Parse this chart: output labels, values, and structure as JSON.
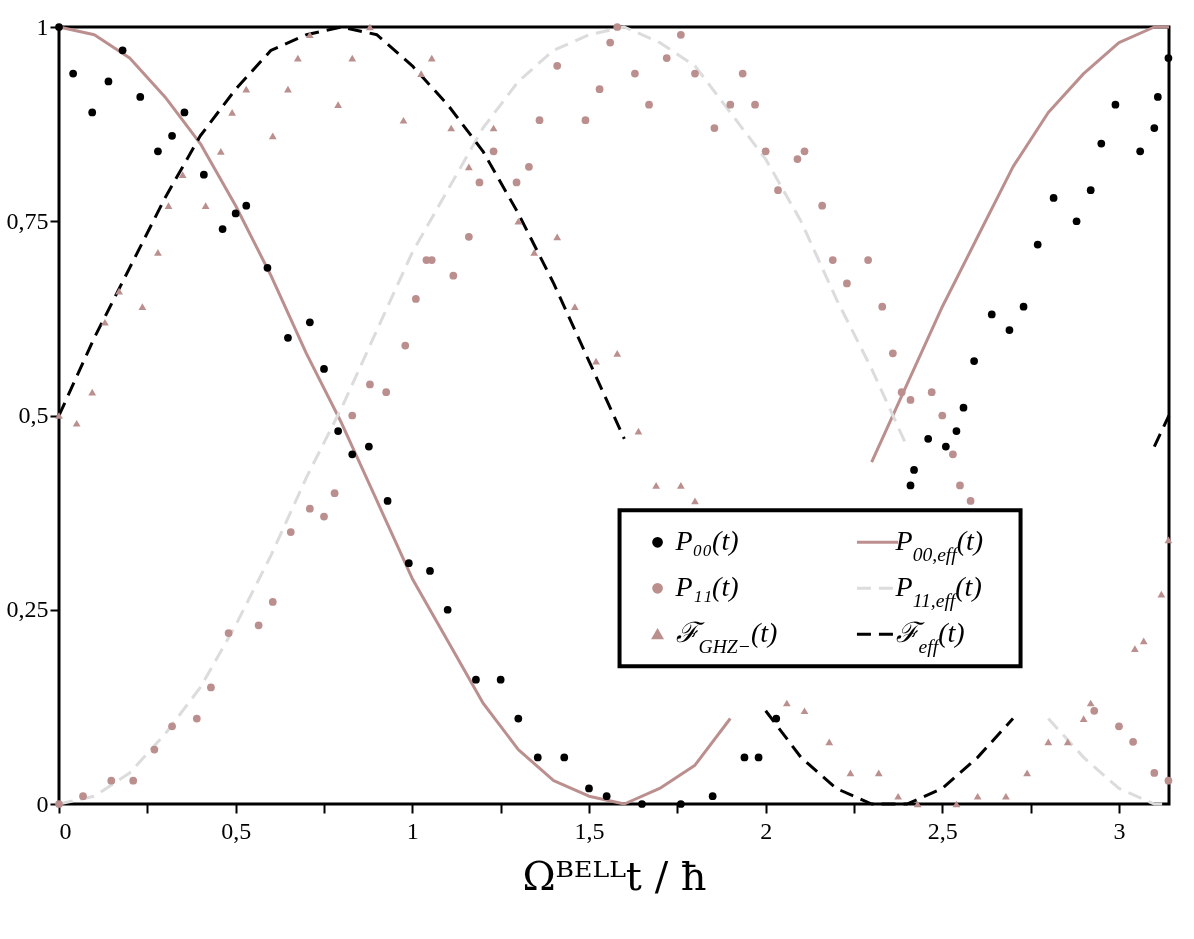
{
  "chart_data": {
    "type": "line",
    "xlabel": "Ωᴮᴱᴸᴸt / ħ",
    "x": [
      0,
      0.1,
      0.2,
      0.3,
      0.4,
      0.5,
      0.6,
      0.7,
      0.8,
      0.9,
      1.0,
      1.1,
      1.2,
      1.3,
      1.4,
      1.5,
      1.6,
      1.7,
      1.8,
      1.9,
      2.0,
      2.1,
      2.2,
      2.3,
      2.4,
      2.5,
      2.6,
      2.7,
      2.8,
      2.9,
      3.0,
      3.1,
      3.1416
    ],
    "xlim": [
      0,
      3.1416
    ],
    "ylim": [
      0,
      1
    ],
    "xticks": [
      0,
      {
        "value": 0.25,
        "label": null
      },
      {
        "value": 0.5,
        "label": "0,5"
      },
      {
        "value": 0.75,
        "label": null
      },
      1,
      {
        "value": 1.25,
        "label": null
      },
      {
        "value": 1.5,
        "label": "1,5"
      },
      {
        "value": 1.75,
        "label": null
      },
      2,
      {
        "value": 2.25,
        "label": null
      },
      {
        "value": 2.5,
        "label": "2,5"
      },
      {
        "value": 2.75,
        "label": null
      },
      3
    ],
    "yticks": [
      0,
      {
        "value": 0.25,
        "label": "0,25"
      },
      {
        "value": 0.5,
        "label": "0,5"
      },
      {
        "value": 0.75,
        "label": "0,75"
      },
      1
    ],
    "legend": "bottom right",
    "line_style": "solid",
    "series": [
      {
        "name": "P₀₀(t)",
        "type": "scatter",
        "color": "#000000",
        "marker": "circle",
        "x": [
          0,
          0.04,
          0.094,
          0.14,
          0.18,
          0.23,
          0.28,
          0.32,
          0.355,
          0.41,
          0.463,
          0.5,
          0.53,
          0.59,
          0.648,
          0.71,
          0.75,
          0.79,
          0.83,
          0.877,
          0.93,
          0.99,
          1.05,
          1.1,
          1.18,
          1.25,
          1.3,
          1.355,
          1.43,
          1.5,
          1.55,
          1.65,
          1.76,
          1.85,
          1.94,
          1.98,
          2.03,
          2.2,
          2.41,
          2.42,
          2.46,
          2.51,
          2.54,
          2.56,
          2.59,
          2.64,
          2.69,
          2.73,
          2.77,
          2.815,
          2.88,
          2.92,
          2.95,
          2.99,
          3.06,
          3.1,
          3.11,
          3.14
        ],
        "values": [
          1,
          0.94,
          0.89,
          0.93,
          0.97,
          0.91,
          0.84,
          0.86,
          0.89,
          0.81,
          0.74,
          0.76,
          0.77,
          0.69,
          0.6,
          0.62,
          0.56,
          0.48,
          0.45,
          0.46,
          0.39,
          0.31,
          0.3,
          0.25,
          0.16,
          0.16,
          0.11,
          0.06,
          0.06,
          0.02,
          0.01,
          0,
          0,
          0.01,
          0.06,
          0.06,
          0.11,
          null,
          0.41,
          0.43,
          0.47,
          0.46,
          0.48,
          0.51,
          0.57,
          0.63,
          0.61,
          0.64,
          0.72,
          0.78,
          0.75,
          0.79,
          0.85,
          0.9,
          0.84,
          0.87,
          0.91,
          0.96
        ]
      },
      {
        "name": "P$_{00,eff}$(t)",
        "color": "#bc8f8f",
        "values": [
          1,
          0.99,
          0.96,
          0.91,
          0.85,
          0.77,
          0.68,
          0.58,
          0.49,
          0.39,
          0.29,
          0.21,
          0.13,
          0.07,
          0.03,
          0.01,
          0,
          0.02,
          0.05,
          0.11,
          null,
          null,
          null,
          0.44,
          0.54,
          0.64,
          0.73,
          0.82,
          0.89,
          0.94,
          0.98,
          1,
          1
        ]
      },
      {
        "name": "P₁₁(t)",
        "type": "scatter",
        "color": "#bc8f8f",
        "marker": "circle",
        "x": [
          0,
          0.068,
          0.148,
          0.21,
          0.27,
          0.32,
          0.39,
          0.43,
          0.48,
          0.565,
          0.605,
          0.656,
          0.71,
          0.75,
          0.78,
          0.83,
          0.88,
          0.926,
          0.98,
          1.01,
          1.04,
          1.055,
          1.116,
          1.16,
          1.19,
          1.23,
          1.295,
          1.33,
          1.36,
          1.41,
          1.49,
          1.53,
          1.56,
          1.58,
          1.63,
          1.67,
          1.72,
          1.76,
          1.8,
          1.855,
          1.9,
          1.935,
          1.97,
          2.0,
          2.035,
          2.09,
          2.11,
          2.16,
          2.19,
          2.23,
          2.29,
          2.33,
          2.36,
          2.385,
          2.41,
          2.47,
          2.5,
          2.53,
          2.55,
          2.58,
          2.75,
          2.93,
          3.0,
          3.04,
          3.1,
          3.14
        ],
        "values": [
          0,
          0.01,
          0.03,
          0.03,
          0.07,
          0.1,
          0.11,
          0.15,
          0.22,
          0.23,
          0.26,
          0.35,
          0.38,
          0.37,
          0.4,
          0.5,
          0.54,
          0.53,
          0.59,
          0.65,
          0.7,
          0.7,
          0.68,
          0.73,
          0.8,
          0.84,
          0.8,
          0.82,
          0.88,
          0.95,
          0.88,
          0.92,
          0.98,
          1.0,
          0.94,
          0.9,
          0.96,
          0.99,
          0.94,
          0.87,
          0.9,
          0.94,
          0.9,
          0.84,
          0.79,
          0.83,
          0.84,
          0.77,
          0.7,
          0.67,
          0.7,
          0.64,
          0.58,
          0.53,
          0.52,
          0.53,
          0.5,
          0.45,
          0.41,
          0.39,
          null,
          0.12,
          0.1,
          0.08,
          0.04,
          0.03
        ]
      },
      {
        "name": "P$_{11,eff}$(t)",
        "color": "#dcdcdc",
        "line_style": "dashed",
        "values": [
          0,
          0.01,
          0.04,
          0.09,
          0.15,
          0.23,
          0.32,
          0.42,
          0.51,
          0.61,
          0.71,
          0.79,
          0.87,
          0.93,
          0.97,
          0.99,
          1,
          0.98,
          0.95,
          0.89,
          0.83,
          0.75,
          0.65,
          0.56,
          0.46,
          null,
          null,
          null,
          0.11,
          0.06,
          0.02,
          0,
          0
        ]
      },
      {
        "name": "ℱ$_{GHZ−}$(t)",
        "type": "scatter",
        "color": "#bc8f8f",
        "marker": "triangle",
        "x": [
          0,
          0.05,
          0.094,
          0.13,
          0.17,
          0.236,
          0.28,
          0.31,
          0.35,
          0.415,
          0.458,
          0.49,
          0.53,
          0.605,
          0.648,
          0.676,
          0.71,
          0.79,
          0.83,
          0.88,
          0.975,
          1.025,
          1.055,
          1.11,
          1.16,
          1.23,
          1.3,
          1.345,
          1.41,
          1.46,
          1.52,
          1.58,
          1.64,
          1.69,
          1.76,
          1.8,
          1.93,
          2.06,
          2.11,
          2.18,
          2.24,
          2.32,
          2.375,
          2.43,
          2.54,
          2.6,
          2.68,
          2.74,
          2.8,
          2.855,
          2.9,
          2.92,
          2.97,
          3.045,
          3.07,
          3.12,
          3.14
        ],
        "values": [
          0.5,
          0.49,
          0.53,
          0.62,
          0.66,
          0.64,
          0.71,
          0.77,
          0.81,
          0.77,
          0.84,
          0.89,
          0.92,
          0.86,
          0.92,
          0.96,
          0.99,
          0.9,
          0.96,
          1.0,
          0.88,
          0.94,
          0.96,
          0.87,
          0.82,
          0.87,
          0.75,
          0.71,
          0.73,
          0.64,
          0.57,
          0.58,
          0.48,
          0.41,
          0.41,
          0.39,
          null,
          0.13,
          0.12,
          0.08,
          0.04,
          0.04,
          0.01,
          0,
          0,
          0.01,
          0.01,
          0.04,
          0.08,
          0.08,
          0.11,
          0.13,
          null,
          0.2,
          0.21,
          0.27,
          0.34
        ]
      },
      {
        "name": "ℱ$_{eff}$(t)",
        "color": "#000000",
        "line_style": "dashed",
        "values": [
          0.5,
          0.6,
          0.69,
          0.78,
          0.86,
          0.92,
          0.97,
          0.99,
          1,
          0.99,
          0.95,
          0.9,
          0.84,
          0.76,
          0.67,
          0.57,
          0.47,
          null,
          null,
          null,
          0.12,
          0.06,
          0.02,
          0,
          0,
          0.02,
          0.06,
          0.11,
          null,
          null,
          null,
          0.46,
          0.5
        ]
      }
    ]
  }
}
